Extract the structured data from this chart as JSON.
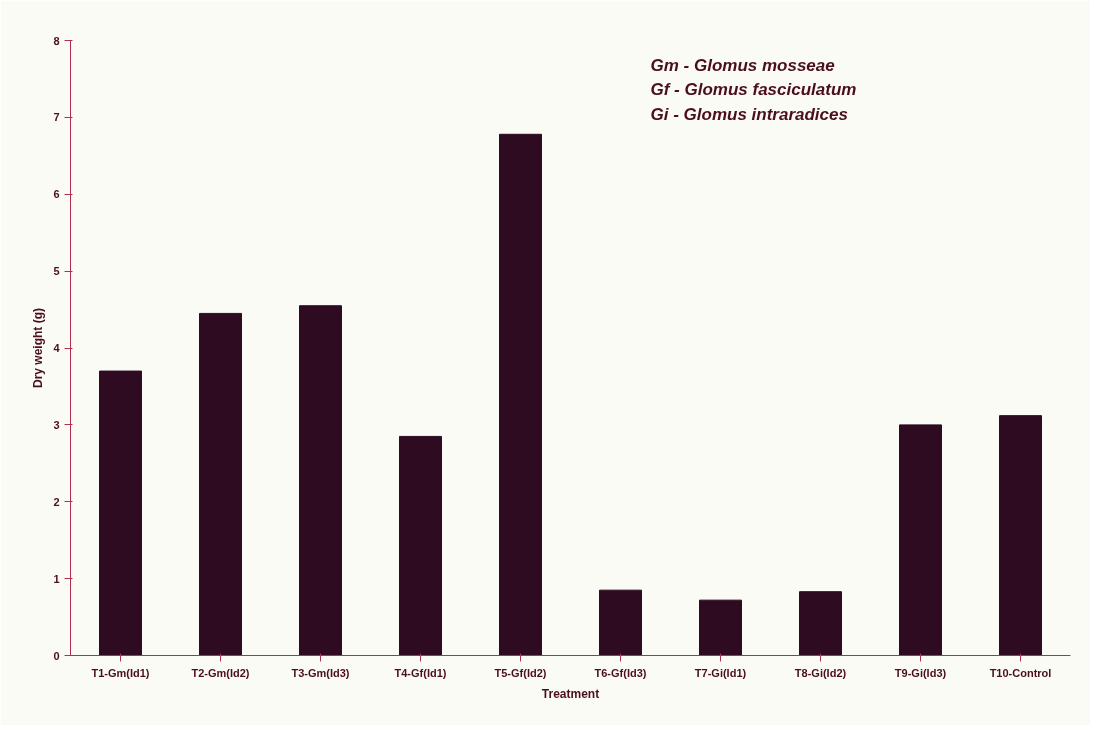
{
  "chart_data": {
    "type": "bar",
    "xlabel": "Treatment",
    "ylabel": "Dry weight (g)",
    "categories": [
      "T1-Gm(Id1)",
      "T2-Gm(Id2)",
      "T3-Gm(Id3)",
      "T4-Gf(Id1)",
      "T5-Gf(Id2)",
      "T6-Gf(Id3)",
      "T7-Gi(Id1)",
      "T8-Gi(Id2)",
      "T9-Gi(Id3)",
      "T10-Control"
    ],
    "values": [
      3.7,
      4.45,
      4.55,
      2.85,
      6.78,
      0.85,
      0.72,
      0.83,
      3.0,
      3.12
    ],
    "color": "#2e0b20",
    "ylim": [
      0,
      8
    ],
    "yticks": [
      0,
      1,
      2,
      3,
      4,
      5,
      6,
      7,
      8
    ],
    "grid": false,
    "annotations": [
      "Gm - Glomus mosseae",
      "Gf - Glomus fasciculatum",
      "Gi - Glomus intraradices"
    ]
  }
}
